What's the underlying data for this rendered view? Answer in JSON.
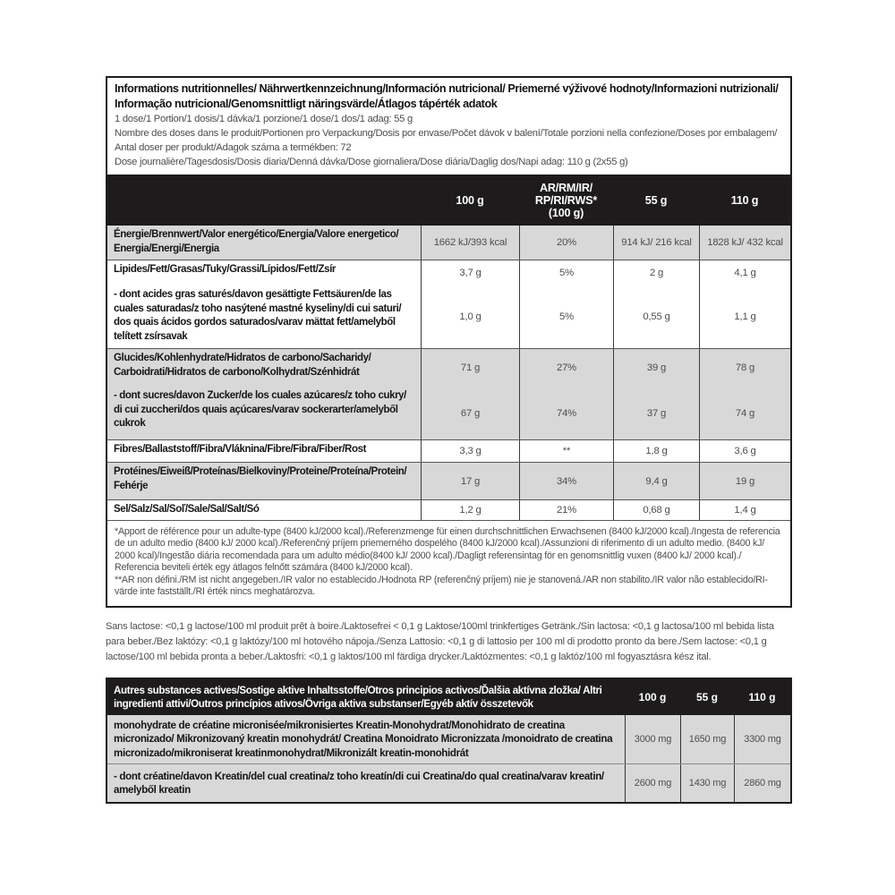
{
  "colors": {
    "header_bar": "#1d1b1c",
    "row_shade": "#d8d8d8",
    "border_dark": "#1f1e1e",
    "value_text": "#4d4d4d"
  },
  "intro": {
    "title": "Informations nutritionnelles/ Nährwertkennzeichnung/Información nutricional/ Priemerné výživové hodnoty/Informazioni nutrizionali/Informação nutricional/Genomsnittligt näringsvärde/Átlagos tápérték adatok",
    "serving": "1 dose/1 Portion/1 dosis/1 dávka/1 porzione/1 dose/1 dos/1 adag: 55 g",
    "servings_per_pack": "Nombre des doses dans le produit/Portionen pro Verpackung/Dosis por envase/Počet dávok v balení/Totale porzioni nella confezione/Doses por embalagem/Antal doser per produkt/Adagok száma a termékben: 72",
    "daily_dose": "Dose journalière/Tagesdosis/Dosis diaria/Denná dávka/Dose giornaliera/Dose diária/Daglig dos/Napi adag: 110 g (2x55 g)"
  },
  "nutrition_table": {
    "columns": {
      "c1": "100 g",
      "c2": "AR/RM/IR/\nRP/RI/RWS*\n(100 g)",
      "c3": "55 g",
      "c4": "110 g"
    },
    "rows": [
      {
        "label": "Énergie/Brennwert/Valor energético/Energia/Valore energetico/Energia/Energi/Energia",
        "values": [
          "1662 kJ/393 kcal",
          "20%",
          "914 kJ/ 216 kcal",
          "1828 kJ/ 432 kcal"
        ]
      },
      {
        "label": "Lipides/Fett/Grasas/Tuky/Grassi/Lípidos/Fett/Zsír",
        "values": [
          "3,7 g",
          "5%",
          "2 g",
          "4,1 g"
        ]
      },
      {
        "label": "- dont acides gras saturés/davon gesättigte Fettsäuren/de las cuales saturadas/z toho nasýtené mastné kyseliny/di cui saturi/dos quais ácidos gordos saturados/varav mättat fett/amelyből telített zsírsavak",
        "values": [
          "1,0 g",
          "5%",
          "0,55 g",
          "1,1 g"
        ]
      },
      {
        "label": "Glucides/Kohlenhydrate/Hidratos de carbono/Sacharidy/Carboidrati/Hidratos de carbono/Kolhydrat/Szénhidrát",
        "values": [
          "71 g",
          "27%",
          "39 g",
          "78 g"
        ]
      },
      {
        "label": "- dont sucres/davon Zucker/de los cuales azúcares/z toho cukry/di cui zuccheri/dos quais açúcares/varav sockerarter/amelyből cukrok",
        "values": [
          "67 g",
          "74%",
          "37 g",
          "74 g"
        ]
      },
      {
        "label": "Fibres/Ballaststoff/Fibra/Vláknina/Fibre/Fibra/Fiber/Rost",
        "values": [
          "3,3 g",
          "**",
          "1,8 g",
          "3,6 g"
        ]
      },
      {
        "label": "Protéines/Eiweiß/Proteínas/Bielkoviny/Proteine/Proteína/Protein/Fehérje",
        "values": [
          "17 g",
          "34%",
          "9,4 g",
          "19 g"
        ]
      },
      {
        "label": "Sel/Salz/Sal/Soľ/Sale/Sal/Salt/Só",
        "values": [
          "1,2 g",
          "21%",
          "0,68 g",
          "1,4 g"
        ]
      }
    ]
  },
  "footnotes": {
    "reference_intake": "*Apport de référence pour un adulte-type (8400 kJ/2000 kcal)./Referenzmenge für einen durchschnittlichen Erwachsenen (8400 kJ/2000 kcal)./Ingesta de referencia de un adulto medio (8400 kJ/ 2000 kcal)./Referenčný príjem priemerného dospelého (8400 kJ/2000 kcal)./Assunzioni di riferimento di un adulto medio. (8400 kJ/2000 kcal)/Ingestão diária recomendada para um adulto médio(8400 kJ/ 2000 kcal)./Dagligt referensintag för en genomsnittlig vuxen (8400 kJ/ 2000 kcal)./Referencia beviteli érték egy átlagos felnőtt számára (8400 kJ/2000 kcal).",
    "ar_not_defined": "**AR non défini./RM ist nicht angegeben./IR valor no establecido./Hodnota RP (referenčný príjem) nie je stanovená./AR non stabilito./IR valor não establecido/RI-värde inte fastställt./RI érték nincs meghatározva."
  },
  "lactose_note": "Sans lactose: <0,1 g lactose/100 ml produit prêt à boire./Laktosefrei < 0,1 g Laktose/100ml trinkfertiges Getränk./Sin lactosa: <0,1 g lactosa/100 ml bebida lista para beber./Bez laktózy: <0,1 g laktózy/100 ml hotového nápoja./Senza Lattosio: <0,1 g di lattosio per 100 ml di prodotto pronto da bere./Sem lactose: <0,1 g lactose/100 ml bebida pronta a beber./Laktosfri: <0,1 g laktos/100 ml färdiga drycker./Laktózmentes: <0,1 g laktóz/100 ml fogyasztásra kész ital.",
  "actives_table": {
    "header": "Autres substances actives/Sostige aktive Inhaltsstoffe/Otros principios activos/Ďalšia aktívna zložka/ Altri ingredienti attivi/Outros princípios ativos/Övriga aktiva substanser/Egyéb aktív összetevők",
    "columns": {
      "c1": "100 g",
      "c2": "55 g",
      "c3": "110 g"
    },
    "rows": [
      {
        "label": "monohydrate de créatine micronisée/mikronisiertes Kreatin-Monohydrat/Monohidrato de creatina micronizado/ Mikronizovaný kreatin monohydrát/ Creatina Monoidrato Micronizzata /monoidrato de creatina micronizado/mikroniserat kreatinmonohydrat/Mikronizált kreatin-monohidrát",
        "values": [
          "3000 mg",
          "1650 mg",
          "3300 mg"
        ]
      },
      {
        "label": "- dont créatine/davon Kreatin/del cual creatina/z toho kreatín/di cui Creatina/do qual creatina/varav kreatin/amelyből kreatin",
        "values": [
          "2600 mg",
          "1430 mg",
          "2860 mg"
        ]
      }
    ]
  }
}
